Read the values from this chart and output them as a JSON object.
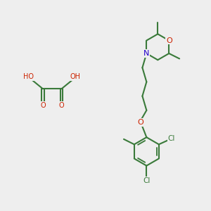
{
  "background_color": "#eeeeee",
  "bond_color": "#3a7a3a",
  "bond_color_cl": "#3a7a3a",
  "bond_color_o": "#cc2200",
  "bond_color_n": "#2200cc",
  "bond_width": 1.5,
  "atom_colors": {
    "C": "#3a7a3a",
    "O": "#cc2200",
    "N": "#2200cc",
    "Cl": "#3a7a3a",
    "H": "#777777"
  },
  "font_size_atom": 7.5,
  "font_size_small": 7.0
}
